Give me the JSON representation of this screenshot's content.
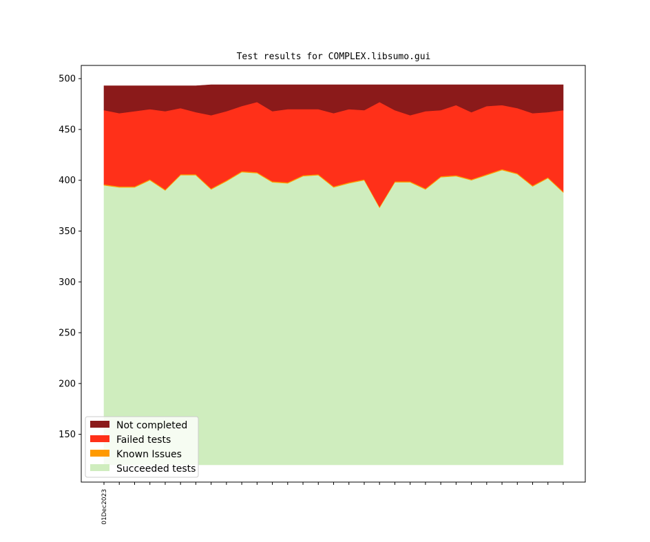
{
  "chart_data": {
    "type": "area",
    "title": "Test results for COMPLEX.libsumo.gui",
    "xlabel": "",
    "ylabel": "",
    "x_tick_labels": [
      "01Dec2023"
    ],
    "num_points": 31,
    "baseline": 120,
    "ylim": [
      103,
      513
    ],
    "yticks": [
      150,
      200,
      250,
      300,
      350,
      400,
      450,
      500
    ],
    "legend_position": "lower left",
    "stacked_totals": {
      "succeeded": [
        395,
        393,
        393,
        400,
        390,
        405,
        405,
        391,
        399,
        408,
        407,
        398,
        397,
        404,
        405,
        393,
        397,
        400,
        373,
        398,
        398,
        391,
        403,
        404,
        400,
        405,
        410,
        406,
        394,
        402,
        388
      ],
      "known_issues": [
        396,
        394,
        394,
        401,
        391,
        406,
        406,
        392,
        400,
        409,
        408,
        399,
        398,
        405,
        406,
        394,
        398,
        401,
        374,
        399,
        399,
        392,
        404,
        405,
        401,
        406,
        411,
        407,
        395,
        403,
        389
      ],
      "failed": [
        469,
        466,
        468,
        470,
        468,
        471,
        467,
        464,
        468,
        473,
        477,
        468,
        470,
        470,
        470,
        466,
        470,
        469,
        477,
        469,
        464,
        468,
        469,
        474,
        467,
        473,
        474,
        471,
        466,
        467,
        469
      ],
      "not_completed": [
        493,
        493,
        493,
        493,
        493,
        493,
        493,
        494,
        494,
        494,
        494,
        494,
        494,
        494,
        494,
        494,
        494,
        494,
        494,
        494,
        494,
        494,
        494,
        494,
        494,
        494,
        494,
        494,
        494,
        494,
        494
      ]
    },
    "series": [
      {
        "name": "Not completed",
        "color": "#8b1a1a"
      },
      {
        "name": "Failed tests",
        "color": "#ff3019"
      },
      {
        "name": "Known Issues",
        "color": "#ff9a00"
      },
      {
        "name": "Succeeded tests",
        "color": "#cfedbe"
      }
    ]
  }
}
